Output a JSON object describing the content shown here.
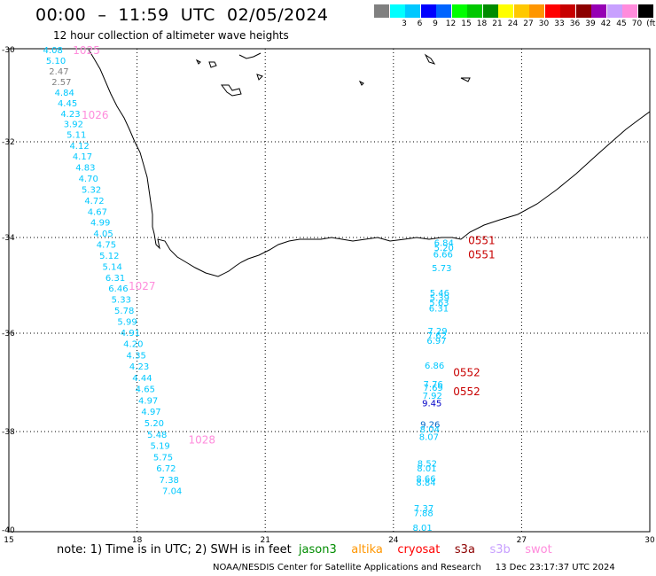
{
  "header": {
    "title": "00:00  –  11:59  UTC  02/05/2024",
    "subtitle": "12 hour collection of altimeter wave heights"
  },
  "legend": {
    "swatches": [
      {
        "color": "#808080",
        "label": ""
      },
      {
        "color": "#00ffff",
        "label": "3"
      },
      {
        "color": "#00c8ff",
        "label": "6"
      },
      {
        "color": "#0000ff",
        "label": "9"
      },
      {
        "color": "#0064ff",
        "label": "12"
      },
      {
        "color": "#00ff00",
        "label": "15"
      },
      {
        "color": "#00c800",
        "label": "18"
      },
      {
        "color": "#008c00",
        "label": "21"
      },
      {
        "color": "#ffff00",
        "label": "24"
      },
      {
        "color": "#ffc800",
        "label": "27"
      },
      {
        "color": "#ff9600",
        "label": "30"
      },
      {
        "color": "#ff0000",
        "label": "33"
      },
      {
        "color": "#c80000",
        "label": "36"
      },
      {
        "color": "#8c0000",
        "label": "39"
      },
      {
        "color": "#9600b4",
        "label": "42"
      },
      {
        "color": "#c8a0ff",
        "label": "45"
      },
      {
        "color": "#ff8cdc",
        "label": "70"
      },
      {
        "color": "#000000",
        "label": "(ft)"
      }
    ]
  },
  "axes": {
    "lon_ticks": [
      15,
      18,
      21,
      24,
      27,
      30
    ],
    "lat_ticks": [
      -30,
      -32,
      -34,
      -36,
      -38,
      -40
    ]
  },
  "tracks": [
    {
      "pass_labels": [
        {
          "text": "1025",
          "lat": -30.0,
          "lon": 16.5,
          "color": "#ff8cdc"
        },
        {
          "text": "1026",
          "lat": -31.4,
          "lon": 16.7,
          "color": "#ff8cdc"
        },
        {
          "text": "1027",
          "lat": -35.0,
          "lon": 17.8,
          "color": "#ff8cdc"
        },
        {
          "text": "1028",
          "lat": -38.15,
          "lon": 19.2,
          "color": "#ff8cdc"
        }
      ],
      "points": [
        {
          "text": "4.08",
          "lat": -30.0,
          "lon": 15.8,
          "color": "#00c8ff"
        },
        {
          "text": "5.10",
          "lat": -30.23,
          "lon": 15.87,
          "color": "#00c8ff"
        },
        {
          "text": "2.47",
          "lat": -30.46,
          "lon": 15.94,
          "color": "#808080"
        },
        {
          "text": "2.57",
          "lat": -30.69,
          "lon": 16.0,
          "color": "#808080"
        },
        {
          "text": "4.84",
          "lat": -30.92,
          "lon": 16.07,
          "color": "#00c8ff"
        },
        {
          "text": "4.45",
          "lat": -31.15,
          "lon": 16.14,
          "color": "#00c8ff"
        },
        {
          "text": "4.23",
          "lat": -31.38,
          "lon": 16.21,
          "color": "#00c8ff"
        },
        {
          "text": "3.92",
          "lat": -31.61,
          "lon": 16.28,
          "color": "#00c8ff"
        },
        {
          "text": "5.11",
          "lat": -31.84,
          "lon": 16.35,
          "color": "#00c8ff"
        },
        {
          "text": "4.12",
          "lat": -32.07,
          "lon": 16.42,
          "color": "#00c8ff"
        },
        {
          "text": "4.17",
          "lat": -32.3,
          "lon": 16.49,
          "color": "#00c8ff"
        },
        {
          "text": "4.83",
          "lat": -32.53,
          "lon": 16.56,
          "color": "#00c8ff"
        },
        {
          "text": "4.70",
          "lat": -32.76,
          "lon": 16.63,
          "color": "#00c8ff"
        },
        {
          "text": "5.32",
          "lat": -32.99,
          "lon": 16.7,
          "color": "#00c8ff"
        },
        {
          "text": "4.72",
          "lat": -33.22,
          "lon": 16.77,
          "color": "#00c8ff"
        },
        {
          "text": "4.67",
          "lat": -33.45,
          "lon": 16.84,
          "color": "#00c8ff"
        },
        {
          "text": "4.99",
          "lat": -33.68,
          "lon": 16.91,
          "color": "#00c8ff"
        },
        {
          "text": "4.05",
          "lat": -33.91,
          "lon": 16.98,
          "color": "#00c8ff"
        },
        {
          "text": "4.75",
          "lat": -34.14,
          "lon": 17.05,
          "color": "#00c8ff"
        },
        {
          "text": "5.12",
          "lat": -34.37,
          "lon": 17.12,
          "color": "#00c8ff"
        },
        {
          "text": "5.14",
          "lat": -34.6,
          "lon": 17.19,
          "color": "#00c8ff"
        },
        {
          "text": "6.31",
          "lat": -34.83,
          "lon": 17.26,
          "color": "#00c8ff"
        },
        {
          "text": "6.46",
          "lat": -35.06,
          "lon": 17.33,
          "color": "#00c8ff"
        },
        {
          "text": "5.33",
          "lat": -35.29,
          "lon": 17.4,
          "color": "#00c8ff"
        },
        {
          "text": "5.78",
          "lat": -35.52,
          "lon": 17.47,
          "color": "#00c8ff"
        },
        {
          "text": "5.99",
          "lat": -35.75,
          "lon": 17.54,
          "color": "#00c8ff"
        },
        {
          "text": "4.91",
          "lat": -35.98,
          "lon": 17.61,
          "color": "#00c8ff"
        },
        {
          "text": "4.20",
          "lat": -36.21,
          "lon": 17.68,
          "color": "#00c8ff"
        },
        {
          "text": "4.35",
          "lat": -36.44,
          "lon": 17.75,
          "color": "#00c8ff"
        },
        {
          "text": "4.23",
          "lat": -36.67,
          "lon": 17.82,
          "color": "#00c8ff"
        },
        {
          "text": "4.44",
          "lat": -36.9,
          "lon": 17.89,
          "color": "#00c8ff"
        },
        {
          "text": "4.65",
          "lat": -37.13,
          "lon": 17.96,
          "color": "#00c8ff"
        },
        {
          "text": "4.97",
          "lat": -37.36,
          "lon": 18.03,
          "color": "#00c8ff"
        },
        {
          "text": "4.97",
          "lat": -37.59,
          "lon": 18.1,
          "color": "#00c8ff"
        },
        {
          "text": "5.20",
          "lat": -37.82,
          "lon": 18.17,
          "color": "#00c8ff"
        },
        {
          "text": "5.48",
          "lat": -38.05,
          "lon": 18.24,
          "color": "#00c8ff"
        },
        {
          "text": "5.19",
          "lat": -38.28,
          "lon": 18.31,
          "color": "#00c8ff"
        },
        {
          "text": "5.75",
          "lat": -38.51,
          "lon": 18.38,
          "color": "#00c8ff"
        },
        {
          "text": "6.72",
          "lat": -38.74,
          "lon": 18.45,
          "color": "#00c8ff"
        },
        {
          "text": "7.38",
          "lat": -38.97,
          "lon": 18.52,
          "color": "#00c8ff"
        },
        {
          "text": "7.04",
          "lat": -39.2,
          "lon": 18.59,
          "color": "#00c8ff"
        }
      ]
    },
    {
      "pass_labels": [
        {
          "text": "0551",
          "lat": -34.05,
          "lon": 25.75,
          "color": "#c80000"
        },
        {
          "text": "0551",
          "lat": -34.34,
          "lon": 25.75,
          "color": "#c80000"
        },
        {
          "text": "0552",
          "lat": -36.78,
          "lon": 25.4,
          "color": "#c80000"
        },
        {
          "text": "0552",
          "lat": -37.17,
          "lon": 25.4,
          "color": "#c80000"
        }
      ],
      "points": [
        {
          "text": "6.84",
          "lat": -34.1,
          "lon": 24.95,
          "color": "#00c8ff"
        },
        {
          "text": "5.20",
          "lat": -34.2,
          "lon": 24.95,
          "color": "#00c8ff"
        },
        {
          "text": "6.66",
          "lat": -34.34,
          "lon": 24.93,
          "color": "#00c8ff"
        },
        {
          "text": "5.73",
          "lat": -34.63,
          "lon": 24.9,
          "color": "#00c8ff"
        },
        {
          "text": "5.46",
          "lat": -35.15,
          "lon": 24.85,
          "color": "#00c8ff"
        },
        {
          "text": "5.39",
          "lat": -35.25,
          "lon": 24.85,
          "color": "#00c8ff"
        },
        {
          "text": "5.63",
          "lat": -35.35,
          "lon": 24.84,
          "color": "#00c8ff"
        },
        {
          "text": "6.31",
          "lat": -35.47,
          "lon": 24.83,
          "color": "#00c8ff"
        },
        {
          "text": "7.29",
          "lat": -35.94,
          "lon": 24.8,
          "color": "#00c8ff"
        },
        {
          "text": "7.62",
          "lat": -36.04,
          "lon": 24.79,
          "color": "#00c8ff"
        },
        {
          "text": "6.97",
          "lat": -36.14,
          "lon": 24.78,
          "color": "#00c8ff"
        },
        {
          "text": "6.86",
          "lat": -36.65,
          "lon": 24.73,
          "color": "#00c8ff"
        },
        {
          "text": "7.76",
          "lat": -37.03,
          "lon": 24.7,
          "color": "#00c8ff"
        },
        {
          "text": "7.69",
          "lat": -37.1,
          "lon": 24.7,
          "color": "#00c8ff"
        },
        {
          "text": "7.92",
          "lat": -37.26,
          "lon": 24.68,
          "color": "#00c8ff"
        },
        {
          "text": "9.45",
          "lat": -37.41,
          "lon": 24.67,
          "color": "#0000c8"
        },
        {
          "text": "9.26",
          "lat": -37.85,
          "lon": 24.63,
          "color": "#0064c8"
        },
        {
          "text": "8.04",
          "lat": -37.95,
          "lon": 24.62,
          "color": "#00c8ff"
        },
        {
          "text": "8.07",
          "lat": -38.1,
          "lon": 24.6,
          "color": "#00c8ff"
        },
        {
          "text": "8.52",
          "lat": -38.64,
          "lon": 24.56,
          "color": "#00c8ff"
        },
        {
          "text": "8.01",
          "lat": -38.74,
          "lon": 24.55,
          "color": "#00c8ff"
        },
        {
          "text": "8.66",
          "lat": -38.95,
          "lon": 24.53,
          "color": "#00c8ff"
        },
        {
          "text": "8.84",
          "lat": -39.03,
          "lon": 24.53,
          "color": "#00c8ff"
        },
        {
          "text": "7.37",
          "lat": -39.55,
          "lon": 24.48,
          "color": "#00c8ff"
        },
        {
          "text": "7.88",
          "lat": -39.65,
          "lon": 24.47,
          "color": "#00c8ff"
        },
        {
          "text": "8.01",
          "lat": -39.95,
          "lon": 24.45,
          "color": "#00c8ff"
        }
      ]
    }
  ],
  "note": {
    "prefix": "note:  1) Time is in UTC;  2) SWH is in feet",
    "satellites": [
      {
        "name": "jason3",
        "color": "#008c00"
      },
      {
        "name": "altika",
        "color": "#ff9600"
      },
      {
        "name": "cryosat",
        "color": "#ff0000"
      },
      {
        "name": "s3a",
        "color": "#8c0000"
      },
      {
        "name": "s3b",
        "color": "#c8a0ff"
      },
      {
        "name": "swot",
        "color": "#ff8cdc"
      }
    ]
  },
  "footer": {
    "credit": "NOAA/NESDIS Center for Satellite Applications and Research",
    "timestamp": "13 Dec 23:17:37 UTC 2024"
  }
}
